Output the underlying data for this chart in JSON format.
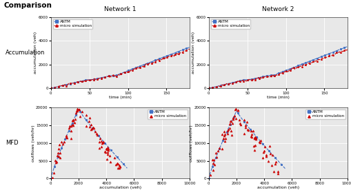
{
  "title": "Comparison",
  "col_titles": [
    "Network 1",
    "Network 2"
  ],
  "row_labels": [
    "Accumulation",
    "MFD"
  ],
  "legend_antm": "ANTM",
  "legend_micro": "micro simulation",
  "antm_color": "#4472C4",
  "micro_color": "#CC0000",
  "accum_ylabel": "accumulation (veh)",
  "accum_xlabel": "time (min)",
  "mfd_ylabel": "outflows (veh/hr)",
  "mfd_xlabel": "accumulation (veh)",
  "accum_ylim": [
    0,
    6000
  ],
  "accum_xlim": [
    0,
    180
  ],
  "accum_yticks": [
    0,
    2000,
    4000,
    6000
  ],
  "accum_xticks": [
    0,
    50,
    100,
    150
  ],
  "mfd_ylim": [
    0,
    20000
  ],
  "mfd_xlim": [
    0,
    10000
  ],
  "mfd_yticks": [
    0,
    5000,
    10000,
    15000,
    20000
  ],
  "mfd_xticks": [
    0,
    2000,
    4000,
    6000,
    8000,
    10000
  ],
  "bg_color": "#e8e8e8",
  "grid_color": "white",
  "tick_labelsize": 4.0,
  "axis_labelsize": 4.5,
  "legend_fontsize": 4.0,
  "col_title_fontsize": 6.5,
  "row_label_fontsize": 6.0,
  "main_title_fontsize": 7.5
}
